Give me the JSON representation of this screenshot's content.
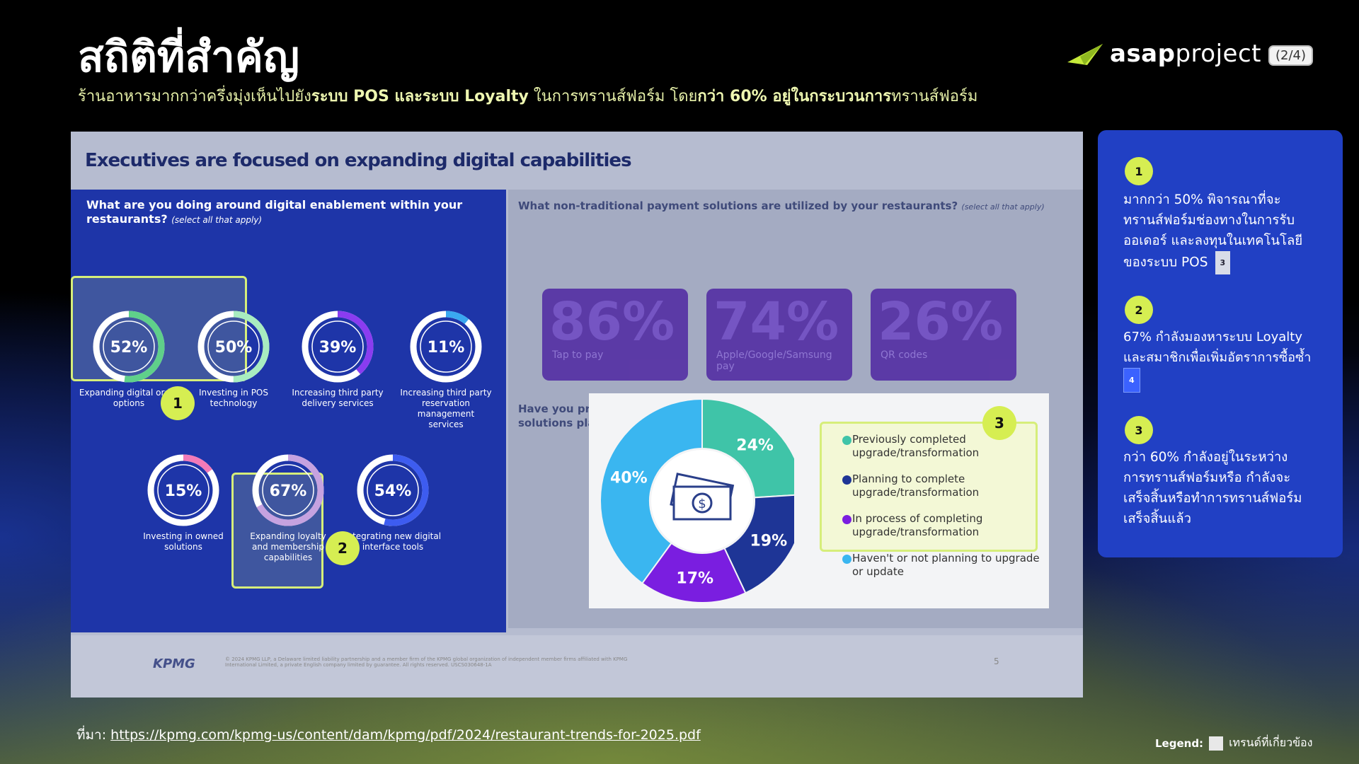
{
  "header": {
    "title": "สถิติที่สำคัญ",
    "subtitle_parts": [
      "ร้านอาหารมากกว่าครึ่งมุ่งเห็นไปยัง",
      "ระบบ POS และระบบ Loyalty",
      " ในการทรานส์ฟอร์ม โดย",
      "กว่า 60% อยู่ในกระบวนการ",
      "ทรานส์ฟอร์ม"
    ],
    "logo_bold": "asap",
    "logo_light": "project",
    "page": "(2/4)"
  },
  "slide": {
    "heading": "Executives are focused on expanding digital capabilities",
    "left_question": "What are you doing around digital enablement within your restaurants?",
    "left_question_note": "(select all that apply)",
    "rings": [
      {
        "value": "52%",
        "pct": 52,
        "color": "#5fd08a",
        "label": [
          "Expanding digital order",
          "options"
        ]
      },
      {
        "value": "50%",
        "pct": 50,
        "color": "#a8ecc0",
        "label": [
          "Investing in POS",
          "technology"
        ]
      },
      {
        "value": "39%",
        "pct": 39,
        "color": "#8a3cf0",
        "label": [
          "Increasing third party",
          "delivery services"
        ]
      },
      {
        "value": "11%",
        "pct": 11,
        "color": "#3aa8f0",
        "label": [
          "Increasing third party",
          "reservation",
          "management",
          "services"
        ]
      },
      {
        "value": "15%",
        "pct": 15,
        "color": "#f27ab8",
        "label": [
          "Investing in owned",
          "solutions"
        ]
      },
      {
        "value": "67%",
        "pct": 67,
        "color": "#c6a2e0",
        "label": [
          "Expanding loyalty",
          "and membership",
          "capabilities"
        ]
      },
      {
        "value": "54%",
        "pct": 54,
        "color": "#3d5cf0",
        "label": [
          "Integrating new digital",
          "interface tools"
        ]
      }
    ],
    "right_question": "What non-traditional payment solutions are utilized by your restaurants?",
    "right_question_note": "(select all that apply)",
    "payments": [
      {
        "pct": "86%",
        "label": "Tap to pay"
      },
      {
        "pct": "74%",
        "label": "Apple/Google/Samsung pay"
      },
      {
        "pct": "26%",
        "label": "QR codes"
      }
    ],
    "upgrade_question": "Have you previously or are you considering upgrading your restaurant's payment solutions platform?",
    "footer_brand": "KPMG",
    "footer_note": "© 2024 KPMG LLP, a Delaware limited liability partnership and a member firm of the KPMG global organization of independent member firms affiliated with KPMG International Limited, a private English company limited by guarantee. All rights reserved. USCS030648-1A",
    "footer_page": "5"
  },
  "chart_data": {
    "type": "pie",
    "categories": [
      "Previously completed upgrade/transformation",
      "Planning to complete upgrade/transformation",
      "In process of completing upgrade/transformation",
      "Haven't or not planning to upgrade or update"
    ],
    "values": [
      24,
      19,
      17,
      40
    ],
    "value_labels": [
      "24%",
      "19%",
      "17%",
      "40%"
    ],
    "colors": [
      "#3fc4a8",
      "#1e3596",
      "#7a1ee0",
      "#3ab6f0"
    ],
    "legend_lines": [
      [
        "Previously completed",
        "upgrade/transformation"
      ],
      [
        "Planning to complete",
        "upgrade/transformation"
      ],
      [
        "In process of completing",
        "upgrade/transformation"
      ],
      [
        "Haven't or not planning to upgrade",
        "or update"
      ]
    ]
  },
  "badges": {
    "one": "1",
    "two": "2",
    "three": "3"
  },
  "side_panel": {
    "items": [
      {
        "num": "1",
        "lines": [
          "มากกว่า 50% พิจารณาที่จะ",
          "ทรานส์ฟอร์มช่องทางในการรับ",
          "ออเดอร์ และลงทุนในเทคโนโลยี",
          "ของระบบ POS"
        ],
        "ref": "3"
      },
      {
        "num": "2",
        "lines": [
          "67% กำลังมองหาระบบ Loyalty",
          "และสมาชิกเพื่อเพิ่มอัตราการซื้อซ้ำ"
        ],
        "ref": "4"
      },
      {
        "num": "3",
        "lines": [
          "กว่า 60% กำลังอยู่ในระหว่าง",
          "การทรานส์ฟอร์มหรือ กำลังจะ",
          "เสร็จสิ้นหรือทำการทรานส์ฟอร์ม",
          "เสร็จสิ้นแล้ว"
        ],
        "ref": ""
      }
    ]
  },
  "footer": {
    "source_label": "ที่มา:",
    "source_url": "https://kpmg.com/kpmg-us/content/dam/kpmg/pdf/2024/restaurant-trends-for-2025.pdf",
    "legend_label": "Legend:",
    "legend_text": "เทรนด์ที่เกี่ยวข้อง"
  }
}
